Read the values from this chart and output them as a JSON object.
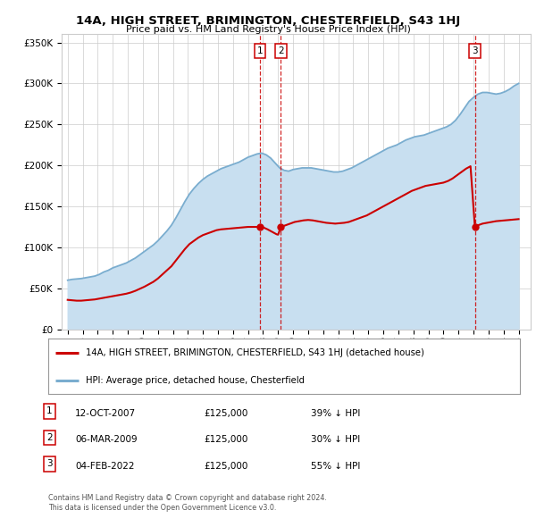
{
  "title": "14A, HIGH STREET, BRIMINGTON, CHESTERFIELD, S43 1HJ",
  "subtitle": "Price paid vs. HM Land Registry's House Price Index (HPI)",
  "ylim": [
    0,
    360000
  ],
  "xlim_start": 1994.6,
  "xlim_end": 2025.8,
  "sale_dates": [
    2007.79,
    2009.18,
    2022.09
  ],
  "sale_prices": [
    125000,
    125000,
    125000
  ],
  "sale_labels": [
    "1",
    "2",
    "3"
  ],
  "legend_line1": "14A, HIGH STREET, BRIMINGTON, CHESTERFIELD, S43 1HJ (detached house)",
  "legend_line2": "HPI: Average price, detached house, Chesterfield",
  "table_rows": [
    [
      "1",
      "12-OCT-2007",
      "£125,000",
      "39% ↓ HPI"
    ],
    [
      "2",
      "06-MAR-2009",
      "£125,000",
      "30% ↓ HPI"
    ],
    [
      "3",
      "04-FEB-2022",
      "£125,000",
      "55% ↓ HPI"
    ]
  ],
  "footnote1": "Contains HM Land Registry data © Crown copyright and database right 2024.",
  "footnote2": "This data is licensed under the Open Government Licence v3.0.",
  "red_color": "#cc0000",
  "blue_color": "#7aadcf",
  "blue_fill_color": "#c8dff0",
  "grid_color": "#cccccc",
  "bg_color": "#ffffff",
  "years_hpi": [
    1995.0,
    1995.3,
    1995.6,
    1995.9,
    1996.2,
    1996.5,
    1996.8,
    1997.1,
    1997.4,
    1997.7,
    1998.0,
    1998.3,
    1998.6,
    1998.9,
    1999.2,
    1999.5,
    1999.8,
    2000.1,
    2000.4,
    2000.7,
    2001.0,
    2001.3,
    2001.6,
    2001.9,
    2002.2,
    2002.5,
    2002.8,
    2003.1,
    2003.4,
    2003.7,
    2004.0,
    2004.3,
    2004.6,
    2004.9,
    2005.2,
    2005.5,
    2005.8,
    2006.1,
    2006.4,
    2006.7,
    2007.0,
    2007.3,
    2007.6,
    2007.9,
    2008.2,
    2008.5,
    2008.8,
    2009.1,
    2009.4,
    2009.7,
    2010.0,
    2010.3,
    2010.6,
    2010.9,
    2011.2,
    2011.5,
    2011.8,
    2012.1,
    2012.4,
    2012.7,
    2013.0,
    2013.3,
    2013.6,
    2013.9,
    2014.2,
    2014.5,
    2014.8,
    2015.1,
    2015.4,
    2015.7,
    2016.0,
    2016.3,
    2016.6,
    2016.9,
    2017.2,
    2017.5,
    2017.8,
    2018.1,
    2018.4,
    2018.7,
    2019.0,
    2019.3,
    2019.6,
    2019.9,
    2020.2,
    2020.5,
    2020.8,
    2021.1,
    2021.4,
    2021.7,
    2022.0,
    2022.3,
    2022.6,
    2022.9,
    2023.2,
    2023.5,
    2023.8,
    2024.1,
    2024.4,
    2024.7,
    2025.0
  ],
  "hpi_values": [
    60000,
    61000,
    61500,
    62000,
    63000,
    64000,
    65000,
    67000,
    70000,
    72000,
    75000,
    77000,
    79000,
    81000,
    84000,
    87000,
    91000,
    95000,
    99000,
    103000,
    108000,
    114000,
    120000,
    127000,
    136000,
    146000,
    156000,
    165000,
    172000,
    178000,
    183000,
    187000,
    190000,
    193000,
    196000,
    198000,
    200000,
    202000,
    204000,
    207000,
    210000,
    212000,
    214000,
    215000,
    213000,
    209000,
    203000,
    197000,
    194000,
    193000,
    195000,
    196000,
    197000,
    197000,
    197000,
    196000,
    195000,
    194000,
    193000,
    192000,
    192000,
    193000,
    195000,
    197000,
    200000,
    203000,
    206000,
    209000,
    212000,
    215000,
    218000,
    221000,
    223000,
    225000,
    228000,
    231000,
    233000,
    235000,
    236000,
    237000,
    239000,
    241000,
    243000,
    245000,
    247000,
    250000,
    255000,
    262000,
    270000,
    278000,
    283000,
    287000,
    289000,
    289000,
    288000,
    287000,
    288000,
    290000,
    293000,
    297000,
    300000
  ],
  "years_red_seg1": [
    1995.0,
    1995.3,
    1995.6,
    1995.9,
    1996.2,
    1996.5,
    1996.8,
    1997.1,
    1997.4,
    1997.7,
    1998.0,
    1998.3,
    1998.6,
    1998.9,
    1999.2,
    1999.5,
    1999.8,
    2000.1,
    2000.4,
    2000.7,
    2001.0,
    2001.3,
    2001.6,
    2001.9,
    2002.2,
    2002.5,
    2002.8,
    2003.1,
    2003.4,
    2003.7,
    2004.0,
    2004.3,
    2004.6,
    2004.9,
    2005.2,
    2005.5,
    2005.8,
    2006.1,
    2006.4,
    2006.7,
    2007.0,
    2007.3,
    2007.6,
    2007.79
  ],
  "red_values_seg1": [
    36000,
    35500,
    35000,
    35000,
    35500,
    36000,
    36500,
    37500,
    38500,
    39500,
    40500,
    41500,
    42500,
    43500,
    45000,
    47000,
    49500,
    52000,
    55000,
    58000,
    62000,
    67000,
    72000,
    77000,
    84000,
    91000,
    98000,
    104000,
    108000,
    112000,
    115000,
    117000,
    119000,
    121000,
    122000,
    122500,
    123000,
    123500,
    124000,
    124500,
    125000,
    125000,
    125000,
    125000
  ],
  "years_red_seg2": [
    2007.79,
    2008.0,
    2008.3,
    2008.6,
    2008.9,
    2009.0,
    2009.18
  ],
  "red_values_seg2": [
    125000,
    124500,
    122000,
    119000,
    116000,
    115500,
    125000
  ],
  "years_red_seg3": [
    2009.18,
    2009.5,
    2009.8,
    2010.1,
    2010.4,
    2010.7,
    2011.0,
    2011.3,
    2011.6,
    2011.9,
    2012.2,
    2012.5,
    2012.8,
    2013.1,
    2013.4,
    2013.7,
    2014.0,
    2014.3,
    2014.6,
    2014.9,
    2015.2,
    2015.5,
    2015.8,
    2016.1,
    2016.4,
    2016.7,
    2017.0,
    2017.3,
    2017.6,
    2017.9,
    2018.2,
    2018.5,
    2018.8,
    2019.1,
    2019.4,
    2019.7,
    2020.0,
    2020.3,
    2020.6,
    2020.9,
    2021.2,
    2021.5,
    2021.8,
    2022.09
  ],
  "red_values_seg3": [
    125000,
    127000,
    129000,
    131000,
    132000,
    133000,
    133500,
    133000,
    132000,
    131000,
    130000,
    129500,
    129000,
    129500,
    130000,
    131000,
    133000,
    135000,
    137000,
    139000,
    142000,
    145000,
    148000,
    151000,
    154000,
    157000,
    160000,
    163000,
    166000,
    169000,
    171000,
    173000,
    175000,
    176000,
    177000,
    178000,
    179000,
    181000,
    184000,
    188000,
    192000,
    196000,
    199000,
    125000
  ],
  "years_red_seg4": [
    2022.09,
    2022.3,
    2022.6,
    2022.9,
    2023.2,
    2023.5,
    2023.8,
    2024.1,
    2024.4,
    2024.7,
    2025.0
  ],
  "red_values_seg4": [
    125000,
    127000,
    129000,
    130000,
    131000,
    132000,
    132500,
    133000,
    133500,
    134000,
    134500
  ]
}
